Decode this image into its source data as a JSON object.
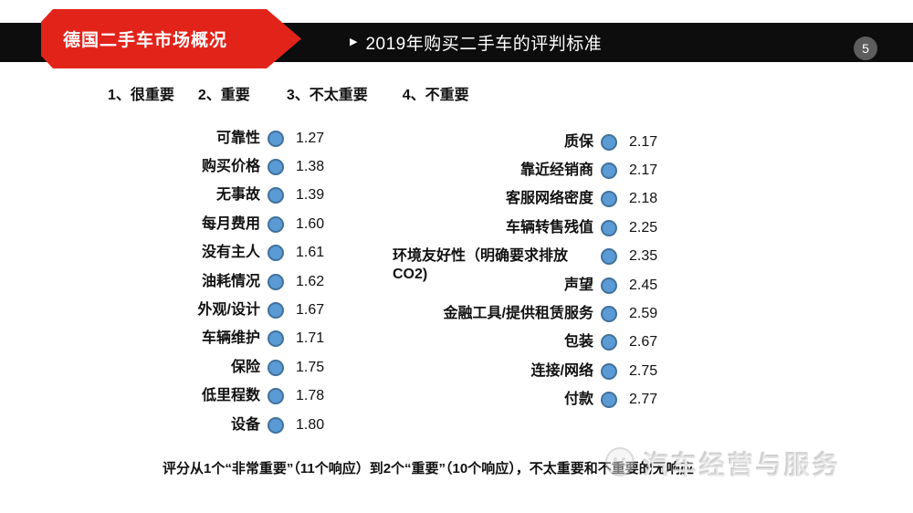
{
  "slide": {
    "section_tab": "德国二手车市场概况",
    "title": "2019年购买二手车的评判标准",
    "page_number": "5"
  },
  "legend": {
    "items": [
      "1、很重要",
      "2、重要",
      "3、不太重要",
      "4、不重要"
    ]
  },
  "chart_data": {
    "type": "scatter",
    "title": "2019年购买二手车的评判标准",
    "scale_ticks": [
      "1、很重要",
      "2、重要",
      "3、不太重要",
      "4、不重要"
    ],
    "value_range": [
      1,
      4
    ],
    "marker": "dot",
    "series": [
      {
        "name": "column-1",
        "points": [
          {
            "label": "可靠性",
            "value": 1.27
          },
          {
            "label": "购买价格",
            "value": 1.38
          },
          {
            "label": "无事故",
            "value": 1.39
          },
          {
            "label": "每月费用",
            "value": 1.6
          },
          {
            "label": "没有主人",
            "value": 1.61
          },
          {
            "label": "油耗情况",
            "value": 1.62
          },
          {
            "label": "外观/设计",
            "value": 1.67
          },
          {
            "label": "车辆维护",
            "value": 1.71
          },
          {
            "label": "保险",
            "value": 1.75
          },
          {
            "label": "低里程数",
            "value": 1.78
          },
          {
            "label": "设备",
            "value": 1.8
          }
        ]
      },
      {
        "name": "column-2",
        "points": [
          {
            "label": "质保",
            "value": 2.17
          },
          {
            "label": "靠近经销商",
            "value": 2.17
          },
          {
            "label": "客服网络密度",
            "value": 2.18
          },
          {
            "label": "车辆转售残值",
            "value": 2.25
          },
          {
            "label": "环境友好性（明确要求排放CO2)",
            "value": 2.35
          },
          {
            "label": "声望",
            "value": 2.45
          },
          {
            "label": "金融工具/提供租赁服务",
            "value": 2.59
          },
          {
            "label": "包装",
            "value": 2.67
          },
          {
            "label": "连接/网络",
            "value": 2.75
          },
          {
            "label": "付款",
            "value": 2.77
          }
        ]
      }
    ],
    "note": "评分从1个“非常重要”（11个响应）到2个“重要”（10个响应），不太重要和不重要的无响应"
  },
  "footnote": "评分从1个“非常重要”（11个响应）到2个“重要”（10个响应），不太重要和不重要的无响应",
  "watermark": {
    "text": "汽车经营与服务"
  },
  "colors": {
    "accent_red": "#e2231a",
    "bar_black": "#0d0d0d",
    "dot_fill": "#5b9bd5",
    "dot_border": "#41719c",
    "page_badge": "#5d5d5d"
  }
}
